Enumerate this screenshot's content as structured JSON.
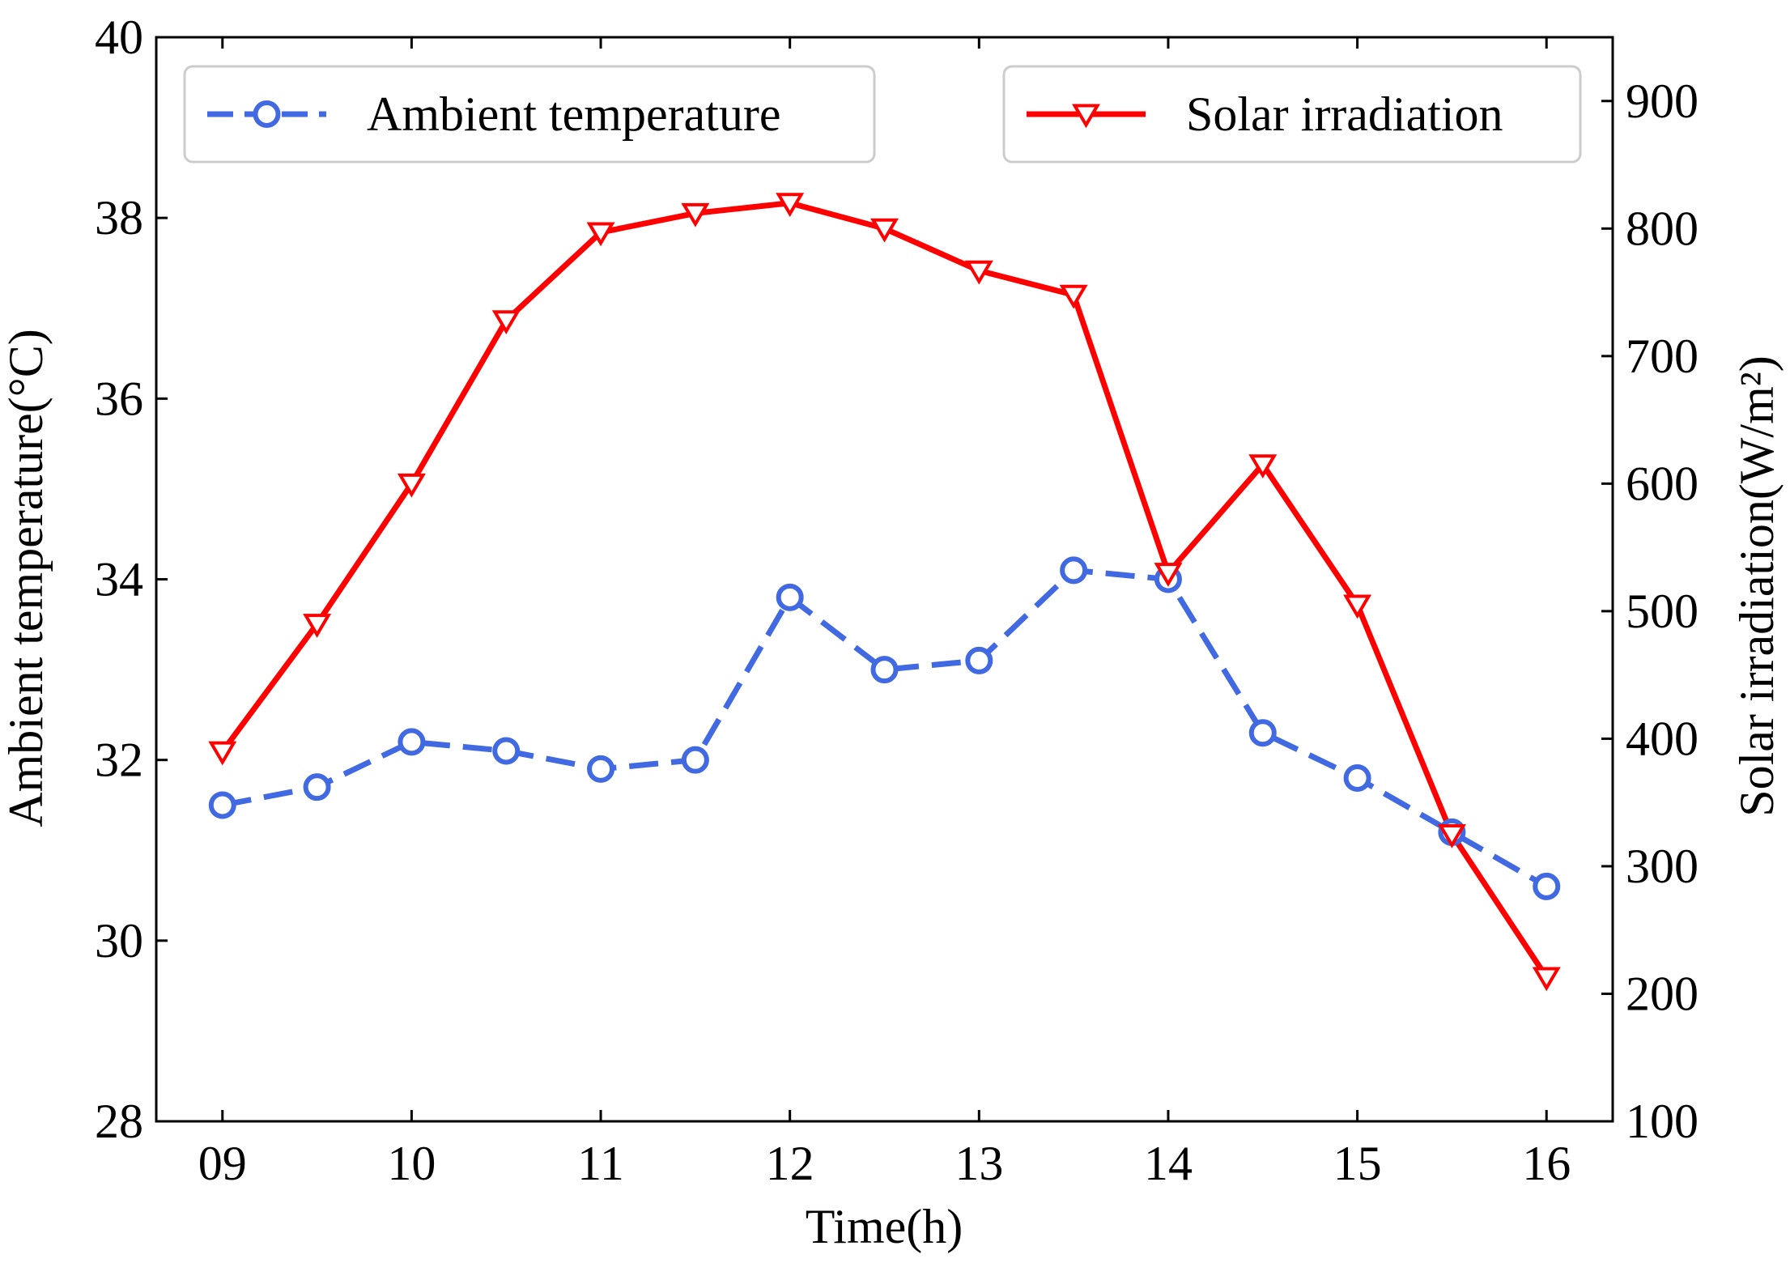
{
  "chart_data": {
    "type": "line",
    "title": "",
    "x": [
      9,
      9.5,
      10,
      10.5,
      11,
      11.5,
      12,
      12.5,
      13,
      13.5,
      14,
      14.5,
      15,
      15.5,
      16
    ],
    "xlabel": "Time(h)",
    "xlim": [
      8.65,
      16.35
    ],
    "xticks": [
      9,
      10,
      11,
      12,
      13,
      14,
      15,
      16
    ],
    "xtick_labels": [
      "09",
      "10",
      "11",
      "12",
      "13",
      "14",
      "15",
      "16"
    ],
    "left_axis": {
      "label": "Ambient temperature(°C)",
      "ylim": [
        28,
        40
      ],
      "ticks": [
        28,
        30,
        32,
        34,
        36,
        38,
        40
      ],
      "tick_labels": [
        "28",
        "30",
        "32",
        "34",
        "36",
        "38",
        "40"
      ]
    },
    "right_axis": {
      "label": "Solar irradiation(W/m²)",
      "ylim": [
        100,
        950
      ],
      "ticks": [
        100,
        200,
        300,
        400,
        500,
        600,
        700,
        800,
        900
      ],
      "tick_labels": [
        "100",
        "200",
        "300",
        "400",
        "500",
        "600",
        "700",
        "800",
        "900"
      ]
    },
    "series": [
      {
        "name": "Ambient temperature",
        "axis": "left",
        "color": "#4169E1",
        "line_style": "dashed",
        "marker": "circle",
        "values": [
          31.5,
          31.7,
          32.2,
          32.1,
          31.9,
          32.0,
          33.8,
          33.0,
          33.1,
          34.1,
          34.0,
          32.3,
          31.8,
          31.2,
          30.6
        ]
      },
      {
        "name": "Solar irradiation",
        "axis": "right",
        "color": "#FF0000",
        "line_style": "solid",
        "marker": "triangle-down",
        "values": [
          390,
          490,
          600,
          728,
          797,
          812,
          820,
          800,
          767,
          748,
          530,
          615,
          505,
          325,
          213
        ]
      }
    ],
    "legend": [
      "top-left",
      "top-right"
    ],
    "grid": false
  }
}
